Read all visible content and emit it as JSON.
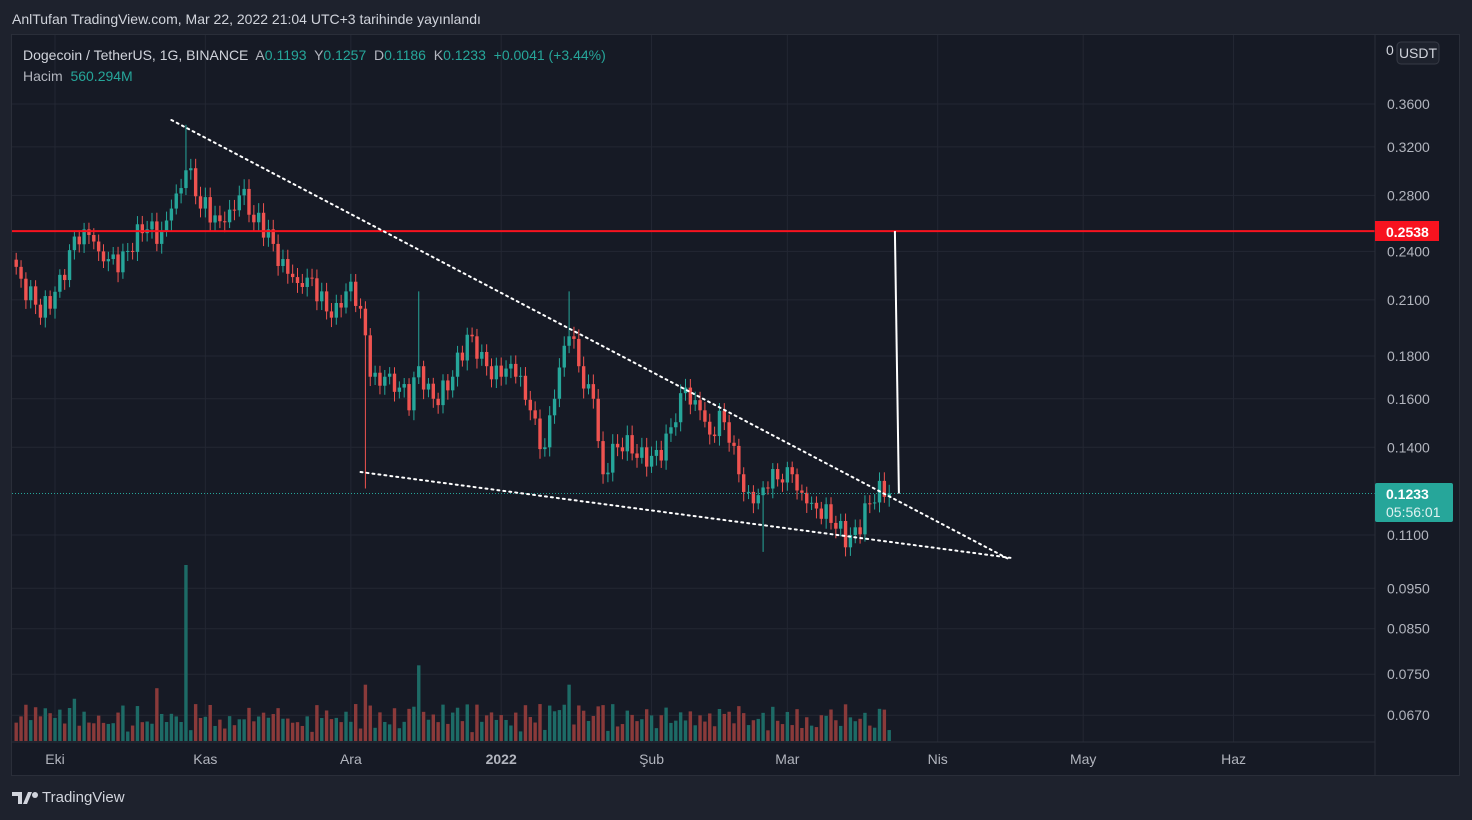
{
  "publish_line": "AnlTufan TradingView.com, Mar 22, 2022 21:04 UTC+3 tarihinde yayınlandı",
  "legend": {
    "symbol": "Dogecoin / TetherUS, 1G, BINANCE",
    "open_label": "A",
    "open": "0.1193",
    "high_label": "Y",
    "high": "0.1257",
    "low_label": "D",
    "low": "0.1186",
    "close_label": "K",
    "close": "0.1233",
    "change": "+0.0041 (+3.44%)",
    "volume_label": "Hacim",
    "volume": "560.294M"
  },
  "price_axis": {
    "currency": "USDT",
    "top_label": "0"
  },
  "badges": {
    "target": "0.2538",
    "current": "0.1233",
    "countdown": "05:56:01"
  },
  "footer": {
    "brand": "TradingView"
  },
  "colors": {
    "up": "#26a69a",
    "down": "#ef5350",
    "target_line": "#f7131f",
    "bg": "#161a25",
    "grid": "#232733"
  },
  "chart_data": {
    "type": "candlestick",
    "scale": "log",
    "ylim": [
      0.062,
      0.41
    ],
    "yticks": [
      0.36,
      0.32,
      0.28,
      0.24,
      0.21,
      0.18,
      0.16,
      0.14,
      0.11,
      0.095,
      0.085,
      0.075,
      0.067
    ],
    "xticks": [
      {
        "date": "2021-10-01",
        "label": "Eki"
      },
      {
        "date": "2021-11-01",
        "label": "Kas"
      },
      {
        "date": "2021-12-01",
        "label": "Ara"
      },
      {
        "date": "2022-01-01",
        "label": "2022"
      },
      {
        "date": "2022-02-01",
        "label": "Şub"
      },
      {
        "date": "2022-03-01",
        "label": "Mar"
      },
      {
        "date": "2022-04-01",
        "label": "Nis"
      },
      {
        "date": "2022-05-01",
        "label": "May"
      },
      {
        "date": "2022-06-01",
        "label": "Haz"
      }
    ],
    "close_keypoints": [
      [
        "2021-09-23",
        0.23
      ],
      [
        "2021-09-28",
        0.2
      ],
      [
        "2021-09-30",
        0.205
      ],
      [
        "2021-10-02",
        0.225
      ],
      [
        "2021-10-05",
        0.25
      ],
      [
        "2021-10-07",
        0.255
      ],
      [
        "2021-10-10",
        0.24
      ],
      [
        "2021-10-12",
        0.235
      ],
      [
        "2021-10-15",
        0.24
      ],
      [
        "2021-10-20",
        0.255
      ],
      [
        "2021-10-22",
        0.245
      ],
      [
        "2021-10-25",
        0.27
      ],
      [
        "2021-10-28",
        0.3
      ],
      [
        "2021-10-31",
        0.27
      ],
      [
        "2021-11-03",
        0.265
      ],
      [
        "2021-11-05",
        0.26
      ],
      [
        "2021-11-08",
        0.28
      ],
      [
        "2021-11-11",
        0.26
      ],
      [
        "2021-11-14",
        0.255
      ],
      [
        "2021-11-17",
        0.235
      ],
      [
        "2021-11-20",
        0.22
      ],
      [
        "2021-11-25",
        0.215
      ],
      [
        "2021-11-27",
        0.2
      ],
      [
        "2021-11-30",
        0.215
      ],
      [
        "2021-12-03",
        0.205
      ],
      [
        "2021-12-05",
        0.17
      ],
      [
        "2021-12-08",
        0.17
      ],
      [
        "2021-12-11",
        0.165
      ],
      [
        "2021-12-13",
        0.155
      ],
      [
        "2021-12-15",
        0.175
      ],
      [
        "2021-12-18",
        0.16
      ],
      [
        "2021-12-22",
        0.17
      ],
      [
        "2021-12-26",
        0.19
      ],
      [
        "2021-12-29",
        0.175
      ],
      [
        "2022-01-01",
        0.17
      ],
      [
        "2022-01-04",
        0.17
      ],
      [
        "2022-01-07",
        0.155
      ],
      [
        "2022-01-10",
        0.14
      ],
      [
        "2022-01-12",
        0.16
      ],
      [
        "2022-01-15",
        0.19
      ],
      [
        "2022-01-17",
        0.175
      ],
      [
        "2022-01-20",
        0.16
      ],
      [
        "2022-01-22",
        0.13
      ],
      [
        "2022-01-25",
        0.14
      ],
      [
        "2022-01-30",
        0.14
      ],
      [
        "2022-02-03",
        0.135
      ],
      [
        "2022-02-06",
        0.15
      ],
      [
        "2022-02-08",
        0.165
      ],
      [
        "2022-02-11",
        0.155
      ],
      [
        "2022-02-13",
        0.145
      ],
      [
        "2022-02-16",
        0.15
      ],
      [
        "2022-02-19",
        0.13
      ],
      [
        "2022-02-22",
        0.12
      ],
      [
        "2022-02-25",
        0.125
      ],
      [
        "2022-03-02",
        0.13
      ],
      [
        "2022-03-05",
        0.12
      ],
      [
        "2022-03-08",
        0.115
      ],
      [
        "2022-03-14",
        0.11
      ],
      [
        "2022-03-18",
        0.12
      ],
      [
        "2022-03-22",
        0.1233
      ]
    ],
    "notable_wicks": [
      {
        "date": "2021-10-28",
        "high": 0.34
      },
      {
        "date": "2021-12-04",
        "low": 0.125
      },
      {
        "date": "2021-12-15",
        "high": 0.215
      },
      {
        "date": "2022-01-15",
        "high": 0.215
      },
      {
        "date": "2022-02-24",
        "low": 0.105
      }
    ],
    "volume_spikes": [
      {
        "date": "2021-10-28",
        "relative": 1.0
      },
      {
        "date": "2021-12-15",
        "relative": 0.43
      },
      {
        "date": "2021-12-04",
        "relative": 0.32
      },
      {
        "date": "2022-01-15",
        "relative": 0.32
      },
      {
        "date": "2021-10-22",
        "relative": 0.3
      },
      {
        "date": "2021-10-05",
        "relative": 0.24
      },
      {
        "date": "2022-02-24",
        "relative": 0.16
      }
    ],
    "drawings": {
      "horizontal_line": 0.2538,
      "vertical_line": {
        "date": "2022-03-24",
        "from": 0.2538,
        "to": 0.1233
      },
      "upper_trendline": [
        [
          "2021-10-25",
          0.3445
        ],
        [
          "2022-04-16",
          0.1027
        ]
      ],
      "lower_trendline": [
        [
          "2021-12-03",
          0.1308
        ],
        [
          "2022-04-16",
          0.1033
        ]
      ],
      "current_price_line": 0.1233
    }
  }
}
